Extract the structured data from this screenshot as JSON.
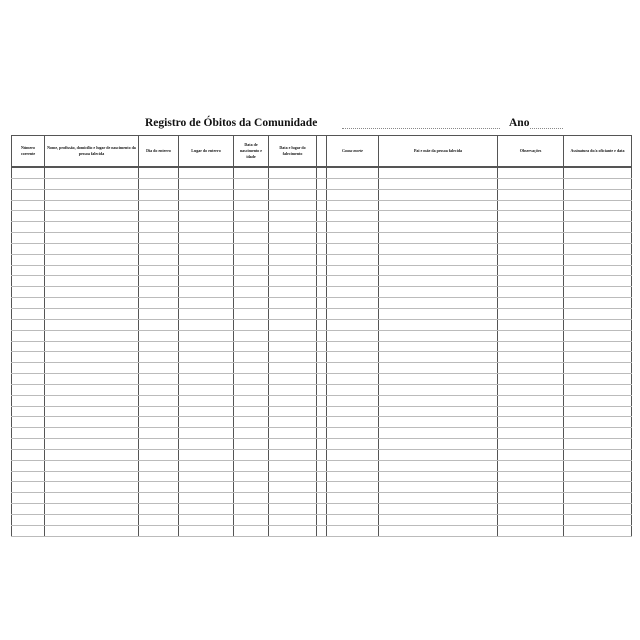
{
  "title": "Registro de Óbitos da Comunidade",
  "year_label": "Ano",
  "columns": [
    {
      "label": "Número corrente"
    },
    {
      "label": "Nome, profissão, domicílio e lugar de nascimento da pessoa falecida"
    },
    {
      "label": "Dia do enterro"
    },
    {
      "label": "Lugar do enterro"
    },
    {
      "label": "Data de nascimento e idade"
    },
    {
      "label": "Data e lugar do falecimento"
    },
    {
      "label": ""
    },
    {
      "label": "Causa morte"
    },
    {
      "label": "Pai e mãe da pessoa falecida"
    },
    {
      "label": "Observações"
    },
    {
      "label": "Assinatura do/a oficiante e data"
    }
  ],
  "row_count": 34
}
